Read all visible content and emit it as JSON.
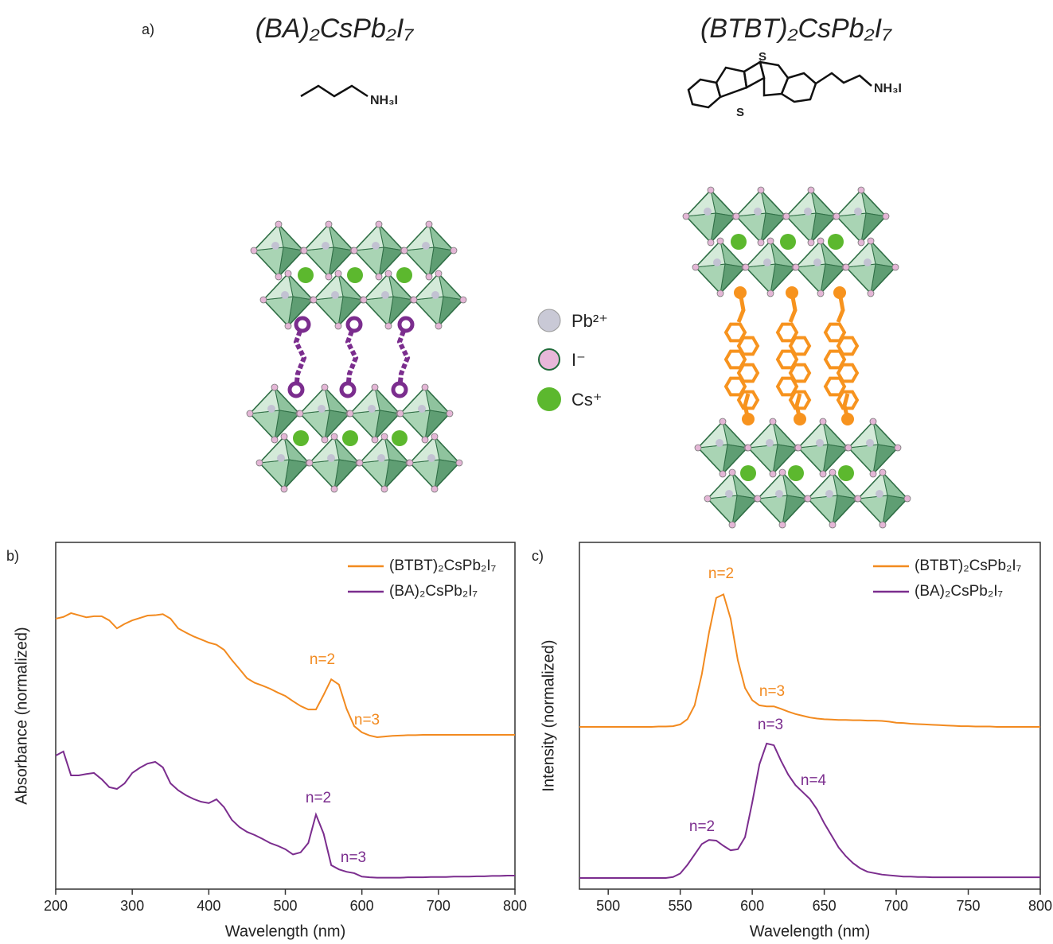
{
  "figure_a": {
    "label": "a)",
    "left_title": "(BA)₂CsPb₂I₇",
    "right_title": "(BTBT)₂CsPb₂I₇",
    "left_group": "NH₃I",
    "right_group": "NH₃I",
    "sulfur_top": "S",
    "sulfur_bottom": "S",
    "legend": [
      "Pb²⁺",
      "I⁻",
      "Cs⁺"
    ]
  },
  "chart_data": [
    {
      "type": "line",
      "label": "b)",
      "xlabel": "Wavelength (nm)",
      "ylabel": "Absorbance (normalized)",
      "x": [
        200,
        210,
        220,
        230,
        240,
        250,
        260,
        270,
        280,
        290,
        300,
        310,
        320,
        330,
        340,
        350,
        360,
        370,
        380,
        390,
        400,
        410,
        420,
        430,
        440,
        450,
        460,
        470,
        480,
        490,
        500,
        510,
        520,
        530,
        540,
        550,
        560,
        570,
        580,
        590,
        600,
        610,
        620,
        630,
        640,
        650,
        660,
        670,
        680,
        690,
        700,
        710,
        720,
        730,
        740,
        750,
        760,
        770,
        780,
        790,
        800
      ],
      "series": [
        {
          "name": "(BTBT)₂CsPb₂I₇",
          "color": "#f28a1f",
          "values": [
            0.78,
            0.785,
            0.796,
            0.79,
            0.784,
            0.787,
            0.787,
            0.775,
            0.752,
            0.765,
            0.775,
            0.782,
            0.789,
            0.79,
            0.793,
            0.78,
            0.752,
            0.74,
            0.729,
            0.72,
            0.711,
            0.705,
            0.69,
            0.661,
            0.635,
            0.608,
            0.595,
            0.587,
            0.578,
            0.567,
            0.557,
            0.542,
            0.528,
            0.518,
            0.518,
            0.56,
            0.605,
            0.59,
            0.52,
            0.47,
            0.452,
            0.443,
            0.438,
            0.44,
            0.442,
            0.443,
            0.444,
            0.444,
            0.445,
            0.445,
            0.445,
            0.445,
            0.445,
            0.445,
            0.445,
            0.445,
            0.445,
            0.445,
            0.445,
            0.445,
            0.445
          ]
        },
        {
          "name": "(BA)₂CsPb₂I₇",
          "color": "#7b2d8e",
          "values": [
            0.385,
            0.397,
            0.328,
            0.328,
            0.332,
            0.335,
            0.317,
            0.294,
            0.289,
            0.305,
            0.335,
            0.35,
            0.362,
            0.367,
            0.351,
            0.305,
            0.285,
            0.271,
            0.26,
            0.252,
            0.248,
            0.259,
            0.236,
            0.2,
            0.179,
            0.165,
            0.156,
            0.145,
            0.133,
            0.125,
            0.115,
            0.1,
            0.106,
            0.133,
            0.215,
            0.16,
            0.069,
            0.057,
            0.05,
            0.046,
            0.036,
            0.034,
            0.033,
            0.033,
            0.033,
            0.033,
            0.034,
            0.034,
            0.034,
            0.035,
            0.035,
            0.035,
            0.036,
            0.036,
            0.036,
            0.037,
            0.037,
            0.038,
            0.038,
            0.039,
            0.039
          ]
        }
      ],
      "annotations": [
        "n=2",
        "n=3",
        "n=2",
        "n=3"
      ],
      "xlim": [
        200,
        800
      ],
      "xticks": [
        200,
        300,
        400,
        500,
        600,
        700,
        800
      ],
      "ylim": [
        0,
        1
      ],
      "legend": "upper right"
    },
    {
      "type": "line",
      "label": "c)",
      "xlabel": "Wavelength (nm)",
      "ylabel": "Intensity (normalized)",
      "x": [
        480,
        485,
        490,
        495,
        500,
        505,
        510,
        515,
        520,
        525,
        530,
        535,
        540,
        545,
        550,
        555,
        560,
        565,
        570,
        575,
        580,
        585,
        590,
        595,
        600,
        605,
        610,
        615,
        620,
        625,
        630,
        635,
        640,
        645,
        650,
        655,
        660,
        665,
        670,
        675,
        680,
        685,
        690,
        695,
        700,
        705,
        710,
        715,
        720,
        725,
        730,
        735,
        740,
        745,
        750,
        755,
        760,
        765,
        770,
        775,
        780,
        785,
        790,
        795,
        800
      ],
      "series": [
        {
          "name": "(BTBT)₂CsPb₂I₇",
          "color": "#f28a1f",
          "values": [
            0.468,
            0.468,
            0.468,
            0.468,
            0.468,
            0.468,
            0.468,
            0.468,
            0.468,
            0.468,
            0.468,
            0.469,
            0.469,
            0.47,
            0.475,
            0.49,
            0.53,
            0.62,
            0.74,
            0.84,
            0.85,
            0.78,
            0.66,
            0.58,
            0.545,
            0.53,
            0.527,
            0.527,
            0.52,
            0.512,
            0.505,
            0.5,
            0.495,
            0.492,
            0.49,
            0.489,
            0.488,
            0.488,
            0.487,
            0.487,
            0.486,
            0.486,
            0.485,
            0.483,
            0.48,
            0.479,
            0.477,
            0.476,
            0.475,
            0.474,
            0.473,
            0.472,
            0.471,
            0.47,
            0.47,
            0.469,
            0.469,
            0.469,
            0.468,
            0.468,
            0.468,
            0.468,
            0.468,
            0.468,
            0.468
          ]
        },
        {
          "name": "(BA)₂CsPb₂I₇",
          "color": "#7b2d8e",
          "values": [
            0.032,
            0.032,
            0.032,
            0.032,
            0.032,
            0.032,
            0.032,
            0.032,
            0.032,
            0.032,
            0.032,
            0.032,
            0.032,
            0.035,
            0.045,
            0.07,
            0.1,
            0.13,
            0.142,
            0.14,
            0.125,
            0.112,
            0.115,
            0.15,
            0.25,
            0.36,
            0.42,
            0.415,
            0.37,
            0.33,
            0.3,
            0.28,
            0.26,
            0.23,
            0.19,
            0.155,
            0.12,
            0.095,
            0.075,
            0.06,
            0.05,
            0.046,
            0.042,
            0.04,
            0.038,
            0.036,
            0.036,
            0.035,
            0.035,
            0.034,
            0.034,
            0.034,
            0.034,
            0.034,
            0.034,
            0.034,
            0.034,
            0.034,
            0.034,
            0.034,
            0.034,
            0.034,
            0.034,
            0.034,
            0.034
          ]
        }
      ],
      "annotations": [
        "n=2",
        "n=3",
        "n=3",
        "n=4",
        "n=2"
      ],
      "xlim": [
        480,
        800
      ],
      "xticks": [
        500,
        550,
        600,
        650,
        700,
        750,
        800
      ],
      "ylim": [
        0,
        1
      ],
      "legend": "upper right"
    }
  ]
}
